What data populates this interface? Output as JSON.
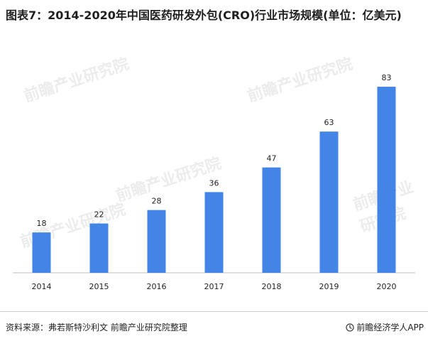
{
  "title": "图表7：2014-2020年中国医药研发外包(CRO)行业市场规模(单位：亿美元)",
  "footer": {
    "source": "资料来源：弗若斯特沙利文 前瞻产业研究院整理",
    "brand": "前瞻经济学人APP",
    "brand_icon": "brand-logo-icon"
  },
  "watermark": {
    "text": "前瞻产业研究院"
  },
  "colors": {
    "bar": "#4285e6",
    "axis": "#bfbfbf",
    "text": "#222222"
  },
  "chart_data": {
    "type": "bar",
    "title": "",
    "xlabel": "",
    "ylabel": "",
    "categories": [
      "2014",
      "2015",
      "2016",
      "2017",
      "2018",
      "2019",
      "2020"
    ],
    "values": [
      18,
      22,
      28,
      36,
      47,
      63,
      83
    ],
    "ylim": [
      0,
      90
    ],
    "grid": false,
    "legend": "none",
    "data_labels": true
  }
}
